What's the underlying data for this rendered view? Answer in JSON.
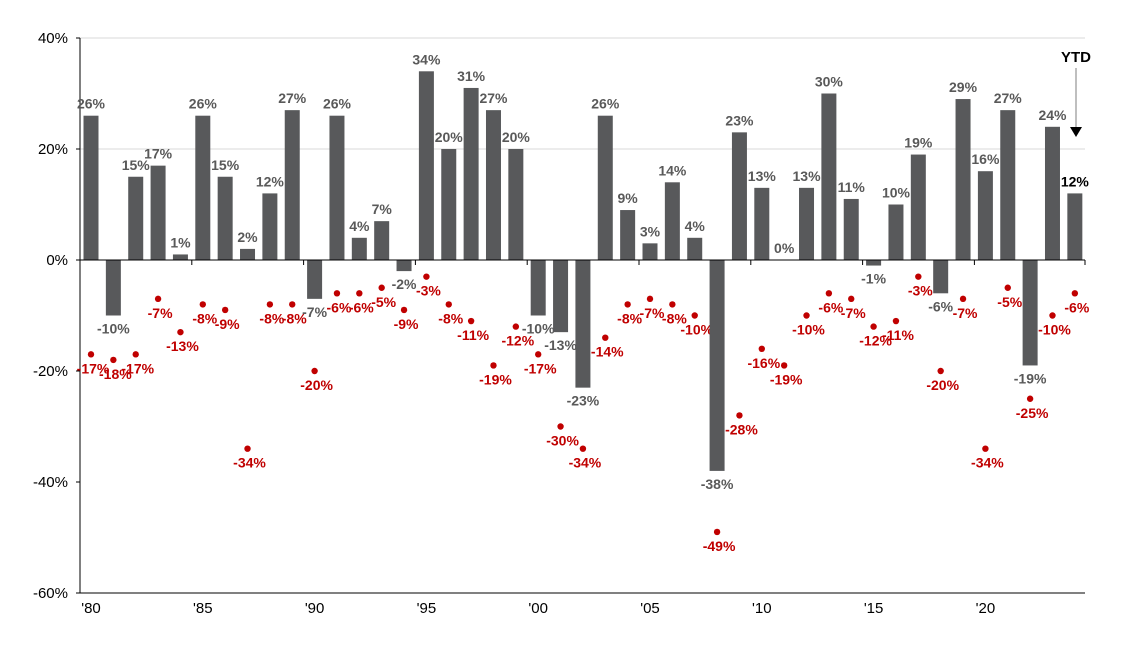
{
  "chart_data": {
    "type": "bar",
    "title": "",
    "xlabel": "",
    "ylabel": "",
    "ylim": [
      -60,
      40
    ],
    "y_ticks": [
      "40%",
      "20%",
      "0%",
      "-20%",
      "-40%",
      "-60%"
    ],
    "y_tick_values": [
      40,
      20,
      0,
      -20,
      -40,
      -60
    ],
    "x_tick_labels": [
      "'80",
      "'85",
      "'90",
      "'95",
      "'00",
      "'05",
      "'10",
      "'15",
      "'20"
    ],
    "x_tick_years": [
      1980,
      1985,
      1990,
      1995,
      2000,
      2005,
      2010,
      2015,
      2020
    ],
    "grid": "horizontal at 40% and 20%",
    "annotation": "YTD",
    "categories": [
      1980,
      1981,
      1982,
      1983,
      1984,
      1985,
      1986,
      1987,
      1988,
      1989,
      1990,
      1991,
      1992,
      1993,
      1994,
      1995,
      1996,
      1997,
      1998,
      1999,
      2000,
      2001,
      2002,
      2003,
      2004,
      2005,
      2006,
      2007,
      2008,
      2009,
      2010,
      2011,
      2012,
      2013,
      2014,
      2015,
      2016,
      2017,
      2018,
      2019,
      2020,
      2021,
      2022,
      2023,
      2024
    ],
    "series": [
      {
        "kind": "bar",
        "color": "#58595b",
        "values": [
          26,
          -10,
          15,
          17,
          1,
          26,
          15,
          2,
          12,
          27,
          -7,
          26,
          4,
          7,
          -2,
          34,
          20,
          31,
          27,
          20,
          -10,
          -13,
          -23,
          26,
          9,
          3,
          14,
          4,
          -38,
          23,
          13,
          0,
          13,
          30,
          11,
          -1,
          10,
          19,
          -6,
          29,
          16,
          27,
          -19,
          24,
          12
        ]
      },
      {
        "kind": "scatter",
        "color": "#c00000",
        "values": [
          -17,
          -18,
          -17,
          -7,
          -13,
          -8,
          -9,
          -34,
          -8,
          -8,
          -20,
          -6,
          -6,
          -5,
          -9,
          -3,
          -8,
          -11,
          -19,
          -12,
          -17,
          -30,
          -34,
          -14,
          -8,
          -7,
          -8,
          -10,
          -49,
          -28,
          -16,
          -19,
          -10,
          -6,
          -7,
          -12,
          -11,
          -3,
          -20,
          -7,
          -34,
          -5,
          -25,
          -10,
          -6
        ]
      }
    ]
  }
}
